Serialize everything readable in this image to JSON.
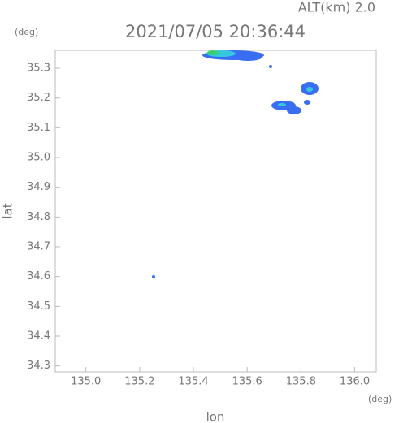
{
  "chart_data": {
    "type": "map",
    "title": "2021/07/05 20:36:44",
    "subtitle": "ALT(km) 2.0",
    "x_label": "lon",
    "y_label": "lat",
    "x_unit": "(deg)",
    "y_unit": "(deg)",
    "xlim": [
      134.886,
      136.08
    ],
    "ylim": [
      34.28,
      35.36
    ],
    "xticks": [
      {
        "value": 135.0,
        "label": "135.0"
      },
      135.2,
      135.4,
      135.6,
      135.8,
      {
        "value": 136.0,
        "label": "136.0"
      }
    ],
    "yticks": [
      35.3,
      35.2,
      35.1,
      {
        "value": 35.0,
        "label": "35.0"
      },
      34.9,
      34.8,
      34.7,
      34.6,
      34.5,
      34.4,
      34.3
    ]
  }
}
